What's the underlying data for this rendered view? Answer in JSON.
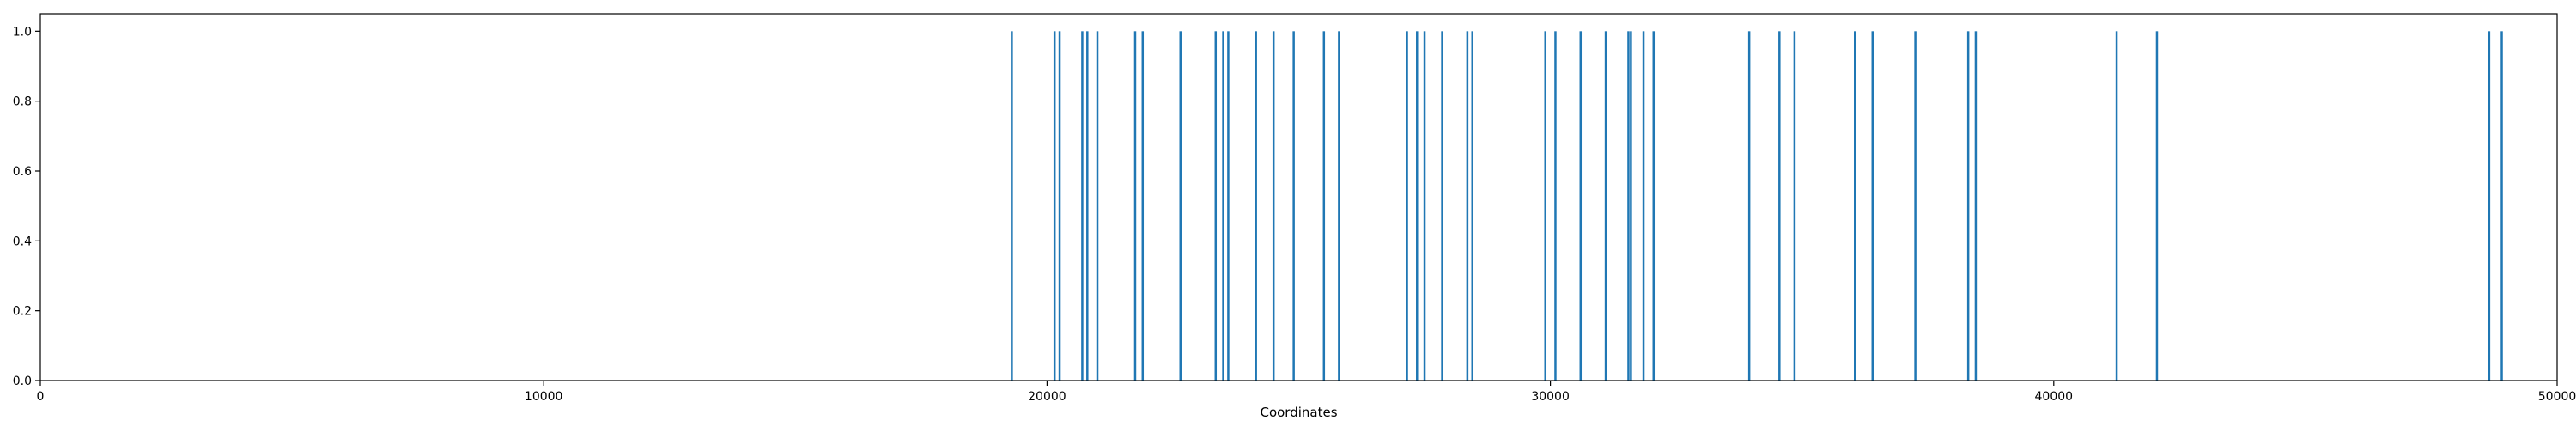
{
  "chart_data": {
    "type": "bar",
    "title": "",
    "xlabel": "Coordinates",
    "ylabel": "",
    "xlim": [
      0,
      50000
    ],
    "ylim": [
      0,
      1.05
    ],
    "grid": false,
    "bar_color": "#1f77b4",
    "x_ticks": [
      0,
      10000,
      20000,
      30000,
      40000,
      50000
    ],
    "x_tick_labels": [
      "0",
      "10000",
      "20000",
      "30000",
      "40000",
      "50000"
    ],
    "y_ticks": [
      0.0,
      0.2,
      0.4,
      0.6,
      0.8,
      1.0
    ],
    "y_tick_labels": [
      "0.0",
      "0.2",
      "0.4",
      "0.6",
      "0.8",
      "1.0"
    ],
    "series": [
      {
        "x": [
          19300,
          20150,
          20250,
          20700,
          20800,
          21000,
          21750,
          21900,
          22650,
          23350,
          23500,
          23600,
          24150,
          24500,
          24900,
          25500,
          25800,
          27150,
          27350,
          27500,
          27850,
          28350,
          28450,
          29900,
          30100,
          30600,
          31100,
          31550,
          31600,
          31850,
          32050,
          33950,
          34550,
          34850,
          36050,
          36400,
          37250,
          38300,
          38450,
          41250,
          42050,
          48650,
          48900
        ],
        "y": [
          1,
          1,
          1,
          1,
          1,
          1,
          1,
          1,
          1,
          1,
          1,
          1,
          1,
          1,
          1,
          1,
          1,
          1,
          1,
          1,
          1,
          1,
          1,
          1,
          1,
          1,
          1,
          1,
          1,
          1,
          1,
          1,
          1,
          1,
          1,
          1,
          1,
          1,
          1,
          1,
          1,
          1,
          1
        ]
      }
    ]
  }
}
